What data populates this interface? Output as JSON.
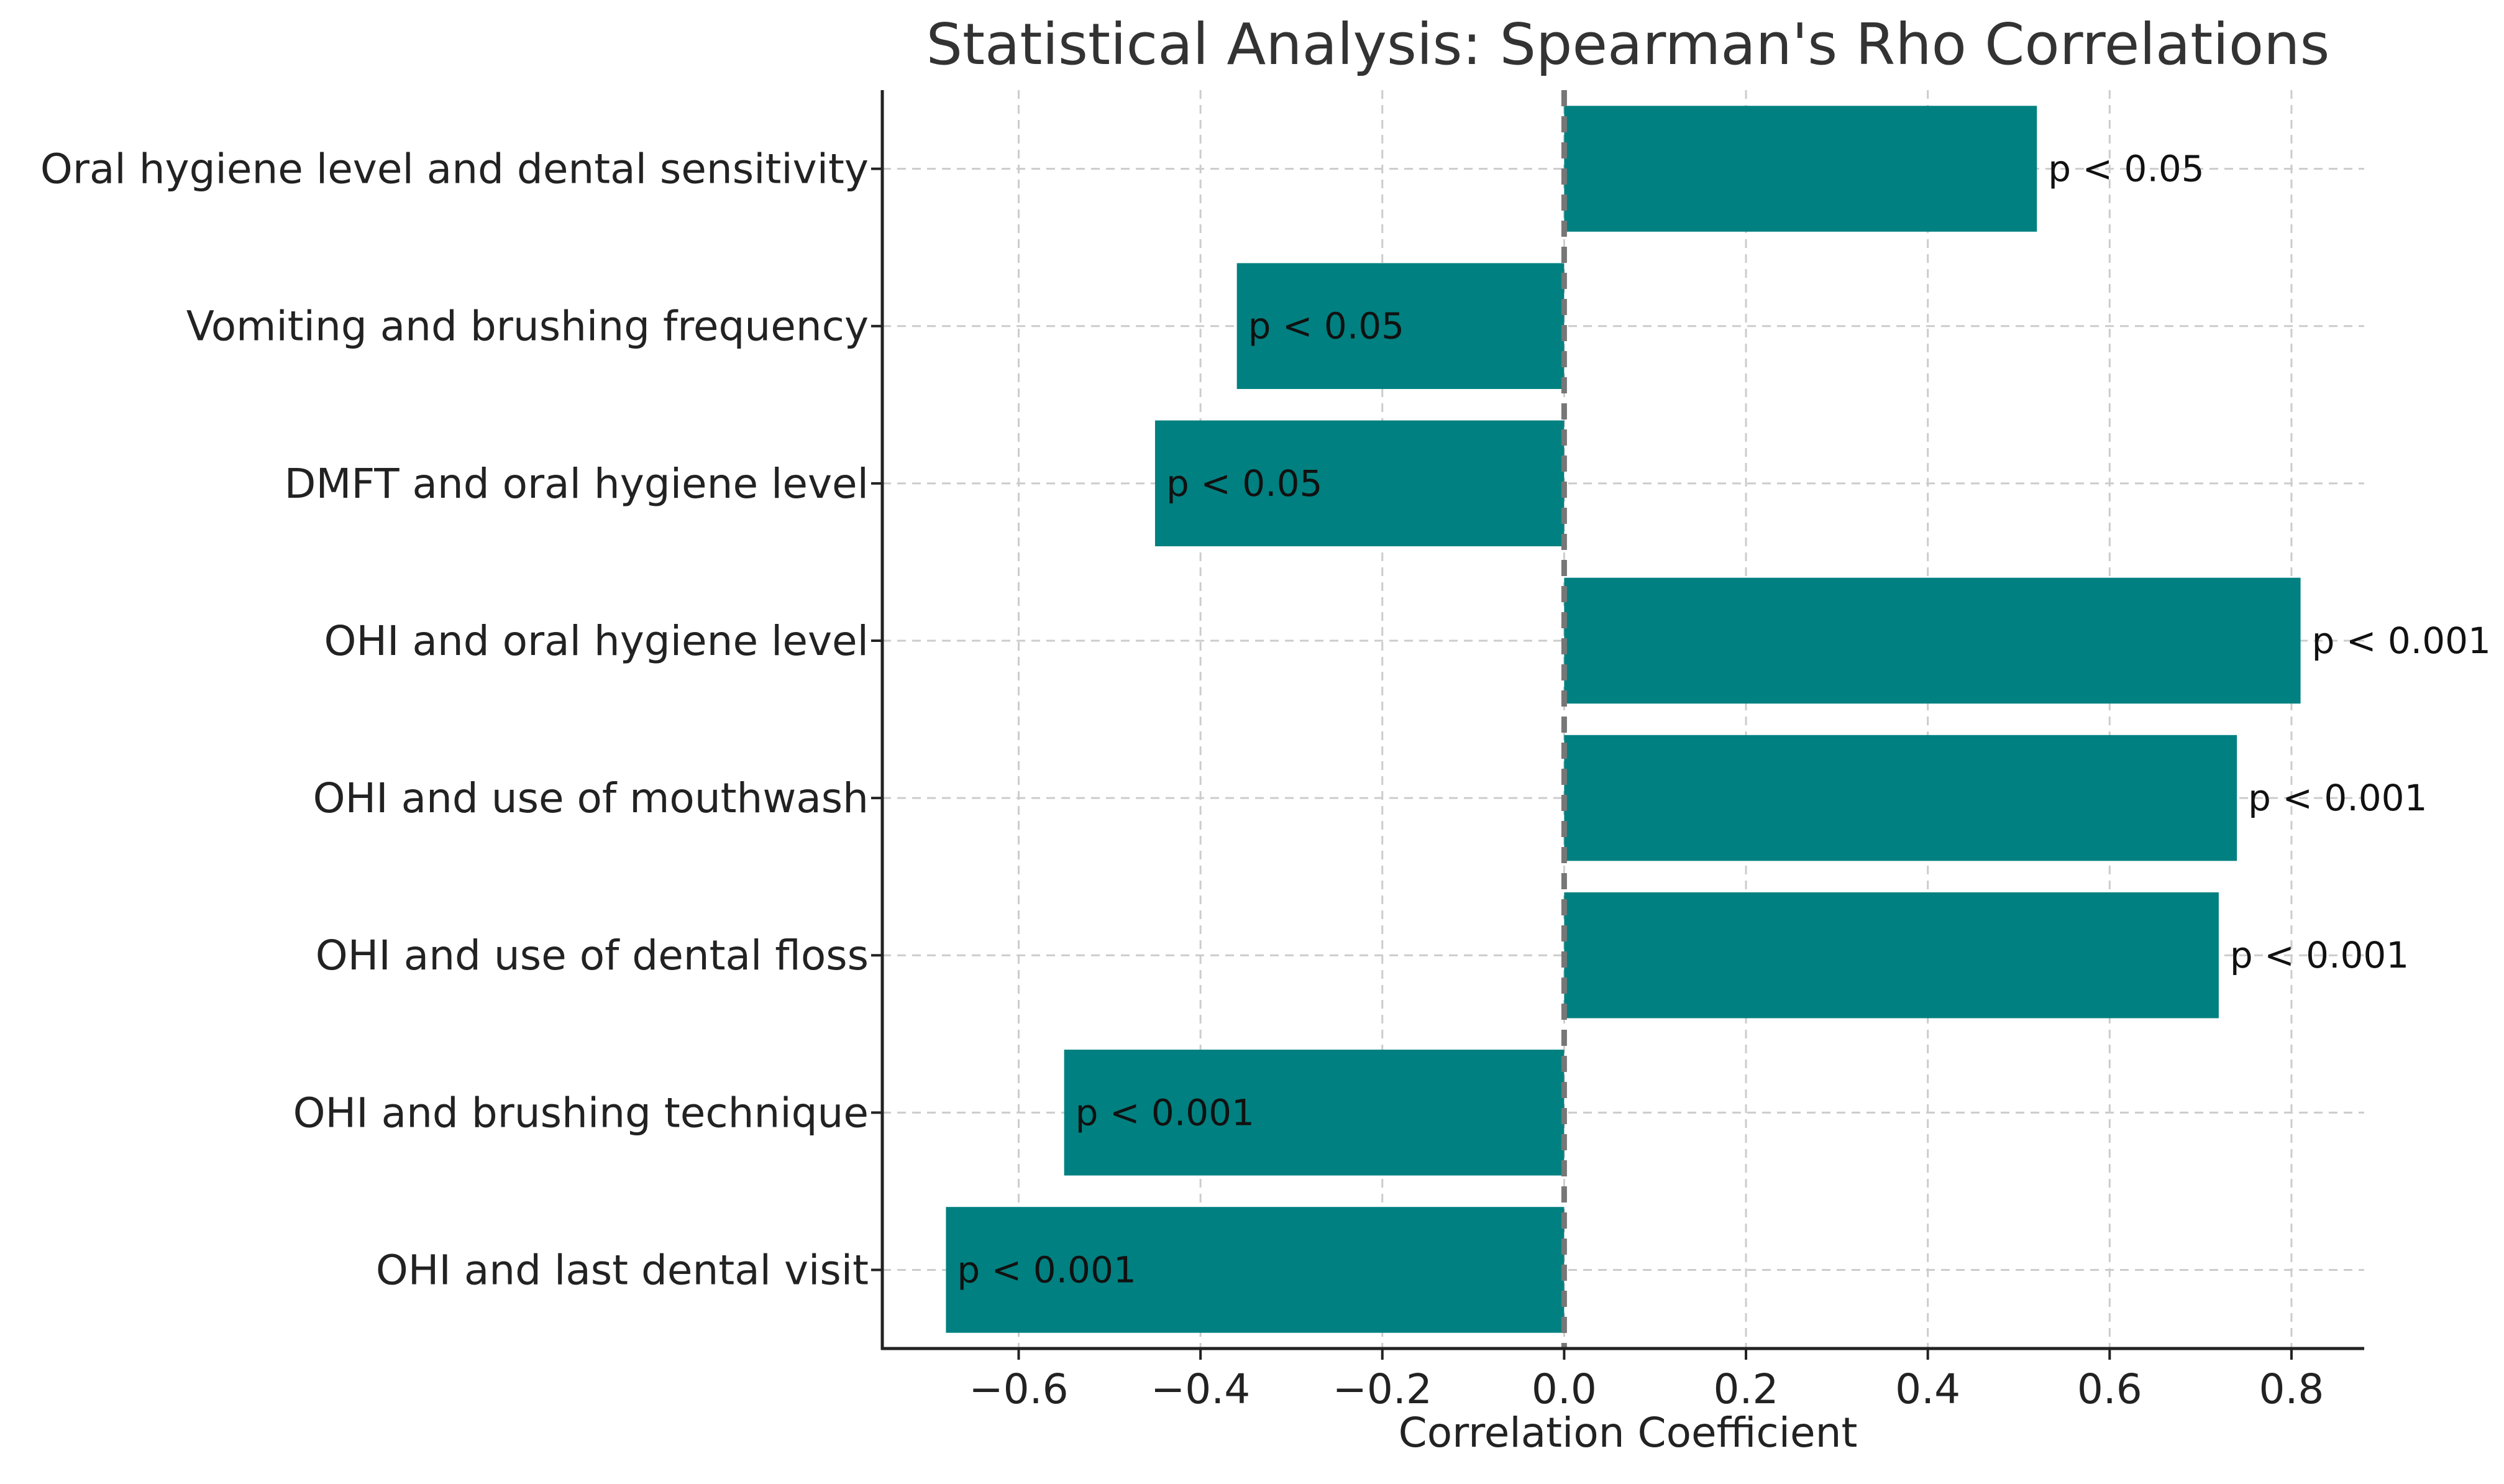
{
  "chart_data": {
    "type": "bar",
    "orientation": "horizontal",
    "title": "Statistical Analysis: Spearman's Rho Correlations",
    "xlabel": "Correlation Coefficient",
    "ylabel": "",
    "xlim": [
      -0.75,
      0.88
    ],
    "grid": true,
    "bar_color": "#008080",
    "zero_line_color": "#777777",
    "categories": [
      "Oral hygiene level and dental sensitivity",
      "Vomiting and brushing frequency",
      "DMFT and oral hygiene level",
      "OHI and oral hygiene level",
      "OHI and use of mouthwash",
      "OHI and use of dental floss",
      "OHI and brushing technique",
      "OHI and last dental visit"
    ],
    "values": [
      0.52,
      -0.36,
      -0.45,
      0.81,
      0.74,
      0.72,
      -0.55,
      -0.68
    ],
    "p_labels": [
      "p < 0.05",
      "p < 0.05",
      "p < 0.05",
      "p < 0.001",
      "p < 0.001",
      "p < 0.001",
      "p < 0.001",
      "p < 0.001"
    ],
    "xticks": [
      -0.6,
      -0.4,
      -0.2,
      0.0,
      0.2,
      0.4,
      0.6,
      0.8
    ],
    "xtick_labels": [
      "−0.6",
      "−0.4",
      "−0.2",
      "0.0",
      "0.2",
      "0.4",
      "0.6",
      "0.8"
    ]
  }
}
